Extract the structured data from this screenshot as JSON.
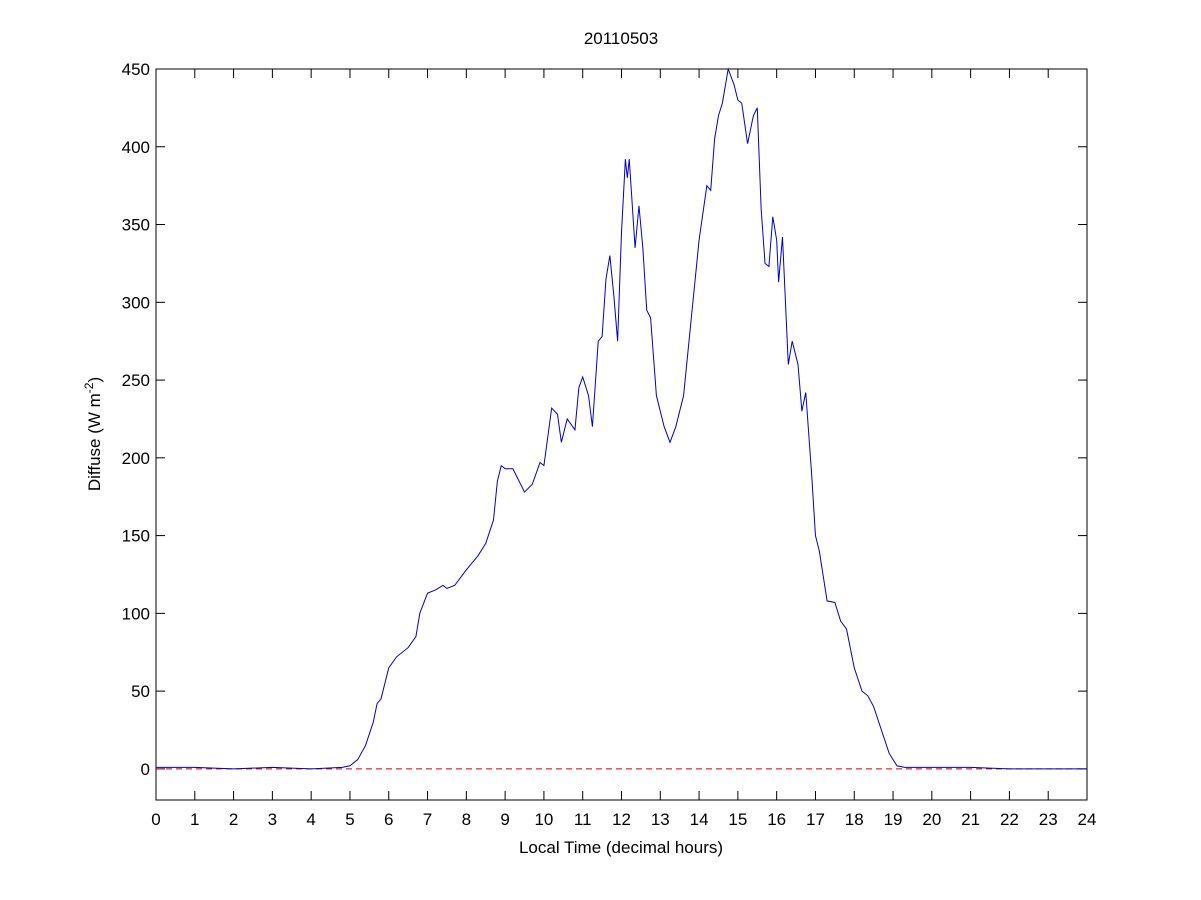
{
  "chart_data": {
    "type": "line",
    "title": "20110503",
    "xlabel": "Local Time (decimal hours)",
    "ylabel_parts": [
      "Diffuse (W m",
      "-2",
      ")"
    ],
    "x": [
      0,
      1,
      2,
      3,
      4,
      4.8,
      5,
      5.2,
      5.4,
      5.6,
      5.7,
      5.8,
      5.9,
      6.0,
      6.2,
      6.5,
      6.7,
      6.8,
      7.0,
      7.2,
      7.4,
      7.5,
      7.7,
      8.0,
      8.3,
      8.5,
      8.7,
      8.8,
      8.9,
      9.0,
      9.2,
      9.3,
      9.5,
      9.7,
      9.9,
      10.0,
      10.2,
      10.35,
      10.45,
      10.6,
      10.8,
      10.9,
      11.0,
      11.15,
      11.25,
      11.4,
      11.5,
      11.6,
      11.7,
      11.8,
      11.9,
      12.0,
      12.1,
      12.15,
      12.2,
      12.35,
      12.45,
      12.55,
      12.65,
      12.75,
      12.9,
      13.1,
      13.25,
      13.4,
      13.6,
      13.8,
      14.0,
      14.2,
      14.3,
      14.4,
      14.5,
      14.6,
      14.75,
      14.9,
      15.0,
      15.1,
      15.25,
      15.4,
      15.5,
      15.6,
      15.7,
      15.8,
      15.9,
      16.0,
      16.05,
      16.15,
      16.3,
      16.4,
      16.55,
      16.65,
      16.75,
      16.9,
      17.0,
      17.1,
      17.3,
      17.5,
      17.65,
      17.8,
      18.0,
      18.2,
      18.35,
      18.5,
      18.7,
      18.9,
      19.1,
      19.3,
      20,
      21,
      22,
      23,
      24
    ],
    "series": [
      {
        "color": "#0000cc",
        "values": [
          1,
          1,
          0,
          1,
          0,
          1,
          2,
          6,
          15,
          30,
          42,
          45,
          55,
          65,
          72,
          78,
          85,
          100,
          113,
          115,
          118,
          116,
          118,
          128,
          137,
          145,
          160,
          185,
          195,
          193,
          193,
          188,
          178,
          183,
          197,
          195,
          232,
          228,
          210,
          225,
          218,
          245,
          252,
          240,
          220,
          275,
          278,
          315,
          330,
          305,
          275,
          345,
          392,
          380,
          392,
          335,
          362,
          335,
          295,
          290,
          240,
          220,
          210,
          220,
          240,
          290,
          340,
          375,
          372,
          405,
          420,
          428,
          450,
          440,
          430,
          428,
          402,
          420,
          425,
          360,
          325,
          323,
          355,
          340,
          313,
          342,
          260,
          275,
          260,
          230,
          242,
          190,
          150,
          140,
          108,
          107,
          95,
          90,
          65,
          50,
          47,
          40,
          25,
          10,
          2,
          1,
          1,
          1,
          0,
          0,
          0
        ]
      }
    ],
    "hline": {
      "y": 0,
      "color": "#cc0000"
    },
    "xlim": [
      0,
      24
    ],
    "xticks": [
      0,
      1,
      2,
      3,
      4,
      5,
      6,
      7,
      8,
      9,
      10,
      11,
      12,
      13,
      14,
      15,
      16,
      17,
      18,
      19,
      20,
      21,
      22,
      23,
      24
    ],
    "ylim": [
      -20,
      450
    ],
    "yticks": [
      0,
      50,
      100,
      150,
      200,
      250,
      300,
      350,
      400,
      450
    ]
  }
}
